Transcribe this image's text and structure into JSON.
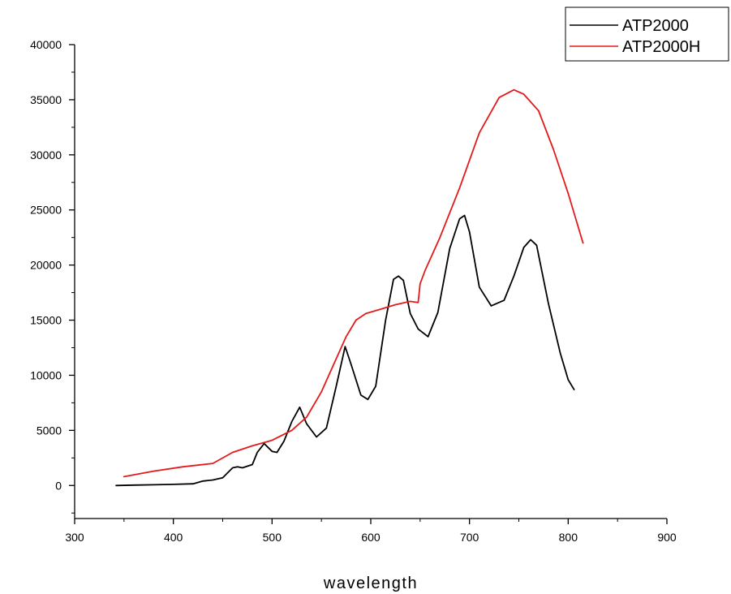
{
  "chart_data": {
    "type": "line",
    "title": "",
    "xlabel": "wavelength",
    "ylabel": "",
    "xlim": [
      300,
      900
    ],
    "ylim": [
      -3000,
      40000
    ],
    "xticks": [
      300,
      400,
      500,
      600,
      700,
      800,
      900
    ],
    "xtick_labels": [
      "300",
      "400",
      "500",
      "600",
      "700",
      "800",
      "900"
    ],
    "yticks": [
      0,
      5000,
      10000,
      15000,
      20000,
      25000,
      30000,
      35000,
      40000
    ],
    "ytick_labels": [
      "0",
      "5000",
      "10000",
      "15000",
      "20000",
      "25000",
      "30000",
      "35000",
      "40000"
    ],
    "grid": false,
    "legend_position": "top-right",
    "legend_labels": [
      "ATP2000",
      "ATP2000H"
    ],
    "series": [
      {
        "name": "ATP2000",
        "color": "#000000",
        "x": [
          342,
          360,
          380,
          400,
          420,
          430,
          440,
          450,
          460,
          465,
          470,
          480,
          485,
          492,
          500,
          505,
          512,
          520,
          528,
          535,
          545,
          555,
          565,
          574,
          580,
          590,
          597,
          605,
          615,
          623,
          628,
          633,
          640,
          648,
          658,
          668,
          680,
          690,
          695,
          700,
          710,
          722,
          735,
          745,
          755,
          762,
          768,
          780,
          792,
          800,
          806
        ],
        "y": [
          0,
          30,
          60,
          100,
          150,
          400,
          500,
          700,
          1600,
          1700,
          1600,
          1900,
          3000,
          3800,
          3100,
          3000,
          4000,
          5800,
          7100,
          5600,
          4400,
          5200,
          9000,
          12600,
          11000,
          8200,
          7800,
          9000,
          15000,
          18700,
          19000,
          18600,
          15600,
          14200,
          13500,
          15700,
          21500,
          24200,
          24500,
          23000,
          18000,
          16300,
          16800,
          19000,
          21600,
          22300,
          21800,
          16500,
          12000,
          9600,
          8700
        ]
      },
      {
        "name": "ATP2000H",
        "color": "#e31a1c",
        "x": [
          350,
          380,
          410,
          440,
          460,
          480,
          500,
          520,
          535,
          550,
          565,
          575,
          585,
          595,
          610,
          625,
          640,
          648,
          650,
          655,
          670,
          690,
          710,
          730,
          745,
          755,
          770,
          785,
          800,
          815
        ],
        "y": [
          800,
          1300,
          1700,
          2000,
          3000,
          3600,
          4100,
          5000,
          6200,
          8500,
          11500,
          13500,
          15000,
          15600,
          16000,
          16400,
          16700,
          16600,
          18300,
          19500,
          22500,
          27000,
          32000,
          35200,
          35900,
          35500,
          34000,
          30500,
          26500,
          22000
        ]
      }
    ]
  }
}
